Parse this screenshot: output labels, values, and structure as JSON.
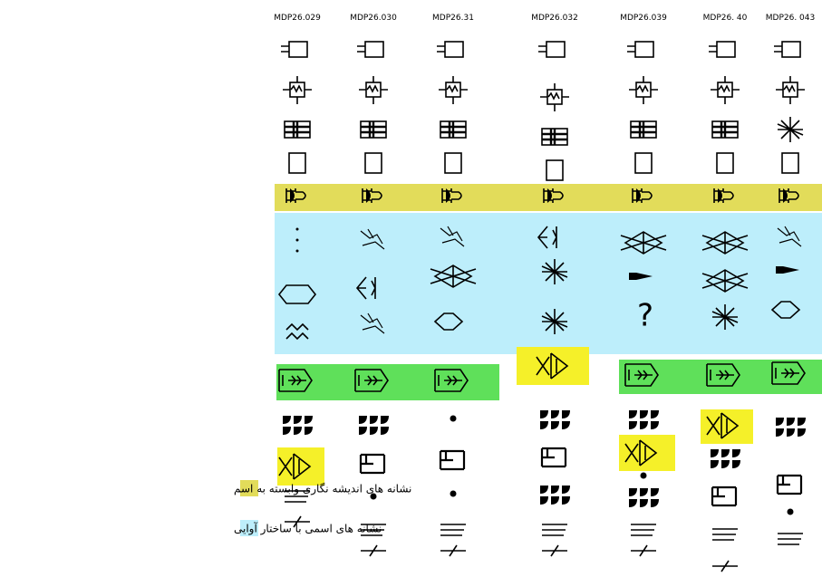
{
  "columns": [
    {
      "header": "MDP26.029"
    },
    {
      "header": "MDP26.030"
    },
    {
      "header": "MDP26.31"
    },
    {
      "header": "MDP26.032"
    },
    {
      "header": "MDP26.039",
      "note": "?"
    },
    {
      "header": "MDP26. 40"
    },
    {
      "header": "MDP26. 043"
    }
  ],
  "legend": {
    "items": [
      {
        "label": "نشانه های اندیشه نگاری وابسته به اسم",
        "color": "#e2dc5a"
      },
      {
        "label": "نشانه های اسمی با ساختار آوایی",
        "color": "#bdeefb"
      }
    ]
  }
}
